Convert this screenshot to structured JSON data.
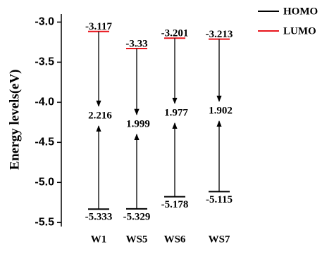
{
  "chart_data": {
    "type": "energy-levels",
    "ylabel": "Energy levels(eV)",
    "categories": [
      "W1",
      "WS5",
      "WS6",
      "WS7"
    ],
    "series": [
      {
        "name": "HOMO",
        "color": "#000000",
        "values": [
          -5.333,
          -5.329,
          -5.178,
          -5.115
        ]
      },
      {
        "name": "LUMO",
        "color": "#e8141b",
        "values": [
          -3.117,
          -3.33,
          -3.201,
          -3.213
        ]
      }
    ],
    "gaps": [
      2.216,
      1.999,
      1.977,
      1.902
    ],
    "ylim": [
      -5.55,
      -2.9
    ],
    "yticks": [
      {
        "value": -3,
        "label": "-3.0"
      },
      {
        "value": -3.5,
        "label": "-3.5"
      },
      {
        "value": -4,
        "label": "-4.0"
      },
      {
        "value": -4.5,
        "label": "-4.5"
      },
      {
        "value": -5,
        "label": "-5.0"
      },
      {
        "value": -5.5,
        "label": "-5.5"
      }
    ],
    "legend": "top-right"
  }
}
